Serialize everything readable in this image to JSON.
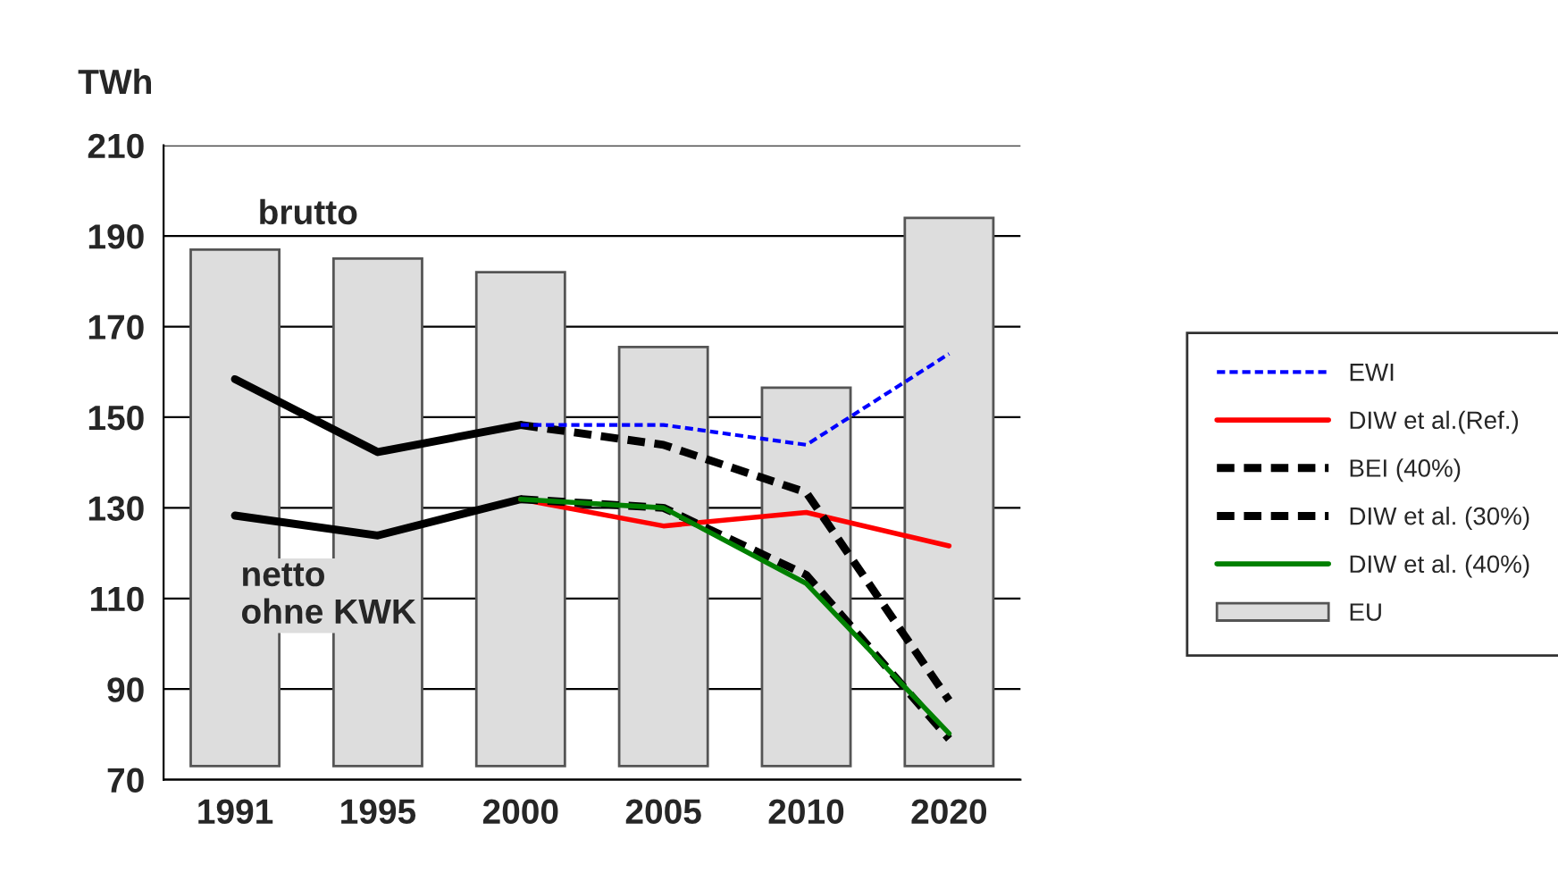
{
  "chart_data": {
    "type": "bar",
    "ylabel": "TWh",
    "categories": [
      "1991",
      "1995",
      "2000",
      "2005",
      "2010",
      "2020"
    ],
    "ylim": [
      70,
      210
    ],
    "yticks": [
      70,
      90,
      110,
      130,
      150,
      170,
      190,
      210
    ],
    "grid": "y",
    "legend": "right",
    "annotations": [
      "brutto",
      "netto\nohne KWK"
    ],
    "series": [
      {
        "name": "EU",
        "color": "#dddddd",
        "base": [
          73,
          73,
          73,
          73,
          73,
          73
        ],
        "values": [
          114,
          112,
          109,
          92.5,
          83.5,
          121
        ]
      },
      {
        "type": "line",
        "color": "#000000",
        "line_style": "solid",
        "values": [
          158.4,
          142.3,
          148.3,
          null,
          null,
          null
        ]
      },
      {
        "type": "line",
        "color": "#000000",
        "line_style": "solid",
        "values": [
          128.3,
          123.9,
          131.9,
          null,
          null,
          null
        ]
      },
      {
        "name": "EWI",
        "type": "line",
        "color": "#0000ff",
        "line_style": "dashed",
        "values": [
          null,
          null,
          148.3,
          148.3,
          143.9,
          164
        ]
      },
      {
        "name": "DIW et al.(Ref.)",
        "type": "line",
        "color": "#ff0000",
        "line_style": "solid",
        "values": [
          null,
          null,
          131.9,
          126,
          129,
          121.6
        ]
      },
      {
        "name": "BEI (40%)",
        "type": "line",
        "color": "#000000",
        "line_style": "dashed",
        "values": [
          null,
          null,
          148.3,
          143.9,
          133.4,
          87.5
        ]
      },
      {
        "name": "DIW et al. (30%)",
        "type": "line",
        "color": "#000000",
        "line_style": "dashed",
        "values": [
          null,
          null,
          131.9,
          130,
          115.2,
          79
        ]
      },
      {
        "name": "DIW et al. (40%)",
        "type": "line",
        "color": "#008000",
        "line_style": "solid",
        "values": [
          null,
          null,
          131.9,
          130,
          113.3,
          80.2
        ]
      }
    ]
  }
}
